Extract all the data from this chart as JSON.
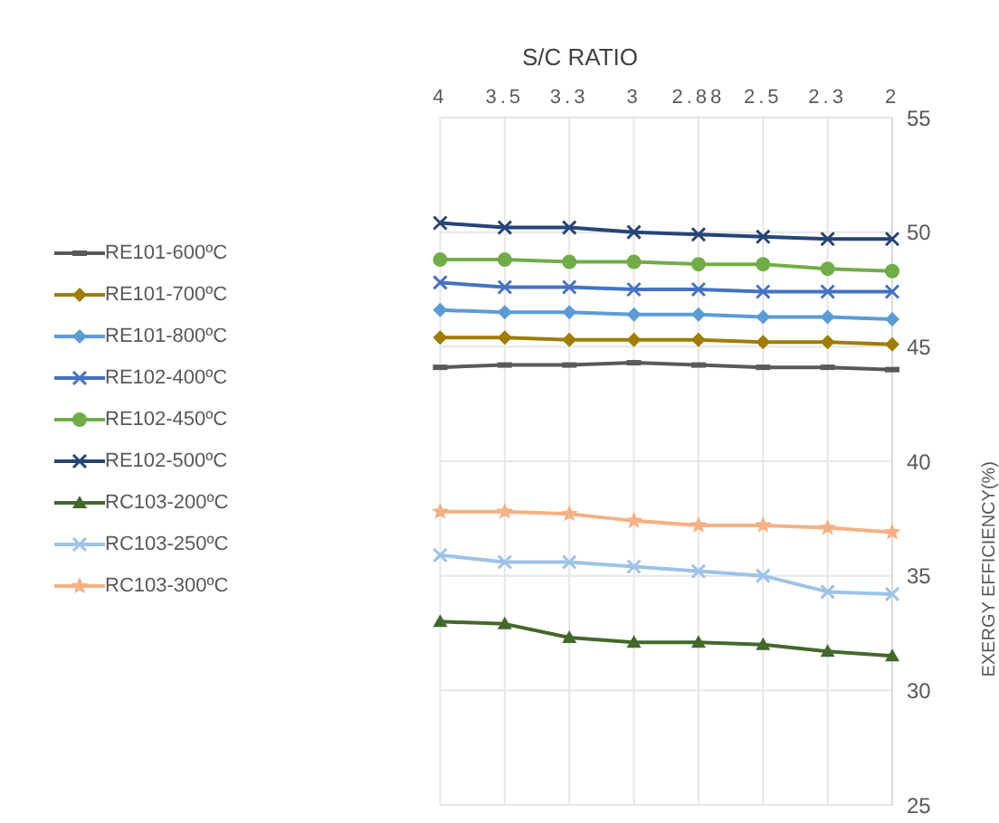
{
  "chart_data": {
    "type": "line",
    "xlabel": "S/C RATIO",
    "ylabel": "EXERGY EFFICIENCY(%)",
    "categories": [
      "4",
      "3.5",
      "3.3",
      "3",
      "2.88",
      "2.5",
      "2.3",
      "2"
    ],
    "ylim": [
      25,
      55
    ],
    "yticks": [
      25,
      30,
      35,
      40,
      45,
      50,
      55
    ],
    "grid": true,
    "legend": "left",
    "series": [
      {
        "name": "RE101-600ºC",
        "color": "#595959",
        "marker": "square",
        "values": [
          44.1,
          44.2,
          44.2,
          44.3,
          44.2,
          44.1,
          44.1,
          44.0
        ]
      },
      {
        "name": "RE101-700ºC",
        "color": "#a07c00",
        "marker": "diamond",
        "values": [
          45.4,
          45.4,
          45.3,
          45.3,
          45.3,
          45.2,
          45.2,
          45.1
        ]
      },
      {
        "name": "RE101-800ºC",
        "color": "#5b9bd5",
        "marker": "diamond",
        "values": [
          46.6,
          46.5,
          46.5,
          46.4,
          46.4,
          46.3,
          46.3,
          46.2
        ]
      },
      {
        "name": "RE102-400ºC",
        "color": "#4472c4",
        "marker": "cross",
        "values": [
          47.8,
          47.6,
          47.6,
          47.5,
          47.5,
          47.4,
          47.4,
          47.4
        ]
      },
      {
        "name": "RE102-450ºC",
        "color": "#70ad47",
        "marker": "circle",
        "values": [
          48.8,
          48.8,
          48.7,
          48.7,
          48.6,
          48.6,
          48.4,
          48.3
        ]
      },
      {
        "name": "RE102-500ºC",
        "color": "#264478",
        "marker": "cross",
        "values": [
          50.4,
          50.2,
          50.2,
          50.0,
          49.9,
          49.8,
          49.7,
          49.7
        ]
      },
      {
        "name": "RC103-200ºC",
        "color": "#43682b",
        "marker": "triangle",
        "values": [
          33.0,
          32.9,
          32.3,
          32.1,
          32.1,
          32.0,
          31.7,
          31.5
        ]
      },
      {
        "name": "RC103-250ºC",
        "color": "#9dc3e6",
        "marker": "cross",
        "values": [
          35.9,
          35.6,
          35.6,
          35.4,
          35.2,
          35.0,
          34.3,
          34.2
        ]
      },
      {
        "name": "RC103-300ºC",
        "color": "#f4b183",
        "marker": "star",
        "values": [
          37.8,
          37.8,
          37.7,
          37.4,
          37.2,
          37.2,
          37.1,
          36.9
        ]
      }
    ]
  }
}
